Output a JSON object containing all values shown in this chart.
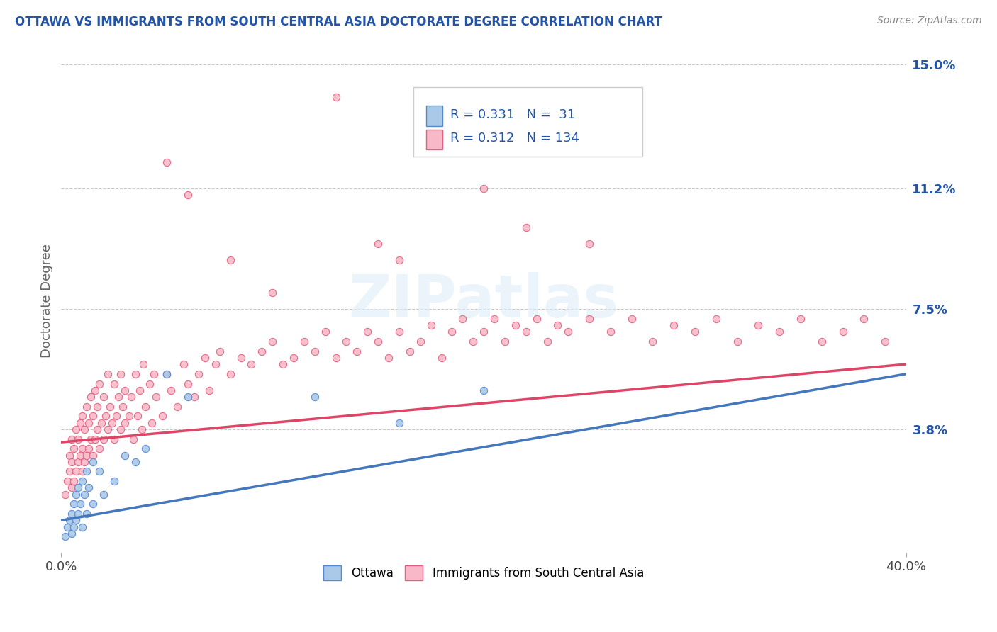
{
  "title": "OTTAWA VS IMMIGRANTS FROM SOUTH CENTRAL ASIA DOCTORATE DEGREE CORRELATION CHART",
  "source": "Source: ZipAtlas.com",
  "ylabel": "Doctorate Degree",
  "xlim": [
    0.0,
    0.4
  ],
  "ylim": [
    0.0,
    0.155
  ],
  "yticks": [
    0.038,
    0.075,
    0.112,
    0.15
  ],
  "ytick_labels": [
    "3.8%",
    "7.5%",
    "11.2%",
    "15.0%"
  ],
  "xtick_labels": [
    "0.0%",
    "40.0%"
  ],
  "ottawa_fill_color": "#aac8e8",
  "ottawa_edge_color": "#5588cc",
  "immigrant_fill_color": "#f8b8c8",
  "immigrant_edge_color": "#e06080",
  "ottawa_line_color": "#4477bb",
  "immigrant_line_color": "#dd4466",
  "R_ottawa": 0.331,
  "N_ottawa": 31,
  "R_immigrant": 0.312,
  "N_immigrant": 134,
  "watermark": "ZIPatlas",
  "background_color": "#ffffff",
  "grid_color": "#bbbbbb",
  "title_color": "#2255aa",
  "label_color": "#2255aa",
  "ottawa_trend": [
    0.01,
    0.055
  ],
  "immigrant_trend": [
    0.034,
    0.058
  ],
  "ottawa_scatter": [
    [
      0.002,
      0.005
    ],
    [
      0.003,
      0.008
    ],
    [
      0.004,
      0.01
    ],
    [
      0.005,
      0.006
    ],
    [
      0.005,
      0.012
    ],
    [
      0.006,
      0.008
    ],
    [
      0.006,
      0.015
    ],
    [
      0.007,
      0.01
    ],
    [
      0.007,
      0.018
    ],
    [
      0.008,
      0.012
    ],
    [
      0.008,
      0.02
    ],
    [
      0.009,
      0.015
    ],
    [
      0.01,
      0.008
    ],
    [
      0.01,
      0.022
    ],
    [
      0.011,
      0.018
    ],
    [
      0.012,
      0.012
    ],
    [
      0.012,
      0.025
    ],
    [
      0.013,
      0.02
    ],
    [
      0.015,
      0.015
    ],
    [
      0.015,
      0.028
    ],
    [
      0.018,
      0.025
    ],
    [
      0.02,
      0.018
    ],
    [
      0.025,
      0.022
    ],
    [
      0.03,
      0.03
    ],
    [
      0.035,
      0.028
    ],
    [
      0.04,
      0.032
    ],
    [
      0.05,
      0.055
    ],
    [
      0.06,
      0.048
    ],
    [
      0.16,
      0.04
    ],
    [
      0.12,
      0.048
    ],
    [
      0.2,
      0.05
    ]
  ],
  "immigrant_scatter": [
    [
      0.002,
      0.018
    ],
    [
      0.003,
      0.022
    ],
    [
      0.004,
      0.025
    ],
    [
      0.004,
      0.03
    ],
    [
      0.005,
      0.02
    ],
    [
      0.005,
      0.028
    ],
    [
      0.005,
      0.035
    ],
    [
      0.006,
      0.022
    ],
    [
      0.006,
      0.032
    ],
    [
      0.007,
      0.025
    ],
    [
      0.007,
      0.038
    ],
    [
      0.008,
      0.028
    ],
    [
      0.008,
      0.035
    ],
    [
      0.009,
      0.03
    ],
    [
      0.009,
      0.04
    ],
    [
      0.01,
      0.025
    ],
    [
      0.01,
      0.032
    ],
    [
      0.01,
      0.042
    ],
    [
      0.011,
      0.028
    ],
    [
      0.011,
      0.038
    ],
    [
      0.012,
      0.03
    ],
    [
      0.012,
      0.045
    ],
    [
      0.013,
      0.032
    ],
    [
      0.013,
      0.04
    ],
    [
      0.014,
      0.035
    ],
    [
      0.014,
      0.048
    ],
    [
      0.015,
      0.03
    ],
    [
      0.015,
      0.042
    ],
    [
      0.016,
      0.035
    ],
    [
      0.016,
      0.05
    ],
    [
      0.017,
      0.038
    ],
    [
      0.017,
      0.045
    ],
    [
      0.018,
      0.032
    ],
    [
      0.018,
      0.052
    ],
    [
      0.019,
      0.04
    ],
    [
      0.02,
      0.035
    ],
    [
      0.02,
      0.048
    ],
    [
      0.021,
      0.042
    ],
    [
      0.022,
      0.038
    ],
    [
      0.022,
      0.055
    ],
    [
      0.023,
      0.045
    ],
    [
      0.024,
      0.04
    ],
    [
      0.025,
      0.035
    ],
    [
      0.025,
      0.052
    ],
    [
      0.026,
      0.042
    ],
    [
      0.027,
      0.048
    ],
    [
      0.028,
      0.038
    ],
    [
      0.028,
      0.055
    ],
    [
      0.029,
      0.045
    ],
    [
      0.03,
      0.04
    ],
    [
      0.03,
      0.05
    ],
    [
      0.032,
      0.042
    ],
    [
      0.033,
      0.048
    ],
    [
      0.034,
      0.035
    ],
    [
      0.035,
      0.055
    ],
    [
      0.036,
      0.042
    ],
    [
      0.037,
      0.05
    ],
    [
      0.038,
      0.038
    ],
    [
      0.039,
      0.058
    ],
    [
      0.04,
      0.045
    ],
    [
      0.042,
      0.052
    ],
    [
      0.043,
      0.04
    ],
    [
      0.044,
      0.055
    ],
    [
      0.045,
      0.048
    ],
    [
      0.048,
      0.042
    ],
    [
      0.05,
      0.055
    ],
    [
      0.052,
      0.05
    ],
    [
      0.055,
      0.045
    ],
    [
      0.058,
      0.058
    ],
    [
      0.06,
      0.052
    ],
    [
      0.063,
      0.048
    ],
    [
      0.065,
      0.055
    ],
    [
      0.068,
      0.06
    ],
    [
      0.07,
      0.05
    ],
    [
      0.073,
      0.058
    ],
    [
      0.075,
      0.062
    ],
    [
      0.08,
      0.055
    ],
    [
      0.085,
      0.06
    ],
    [
      0.09,
      0.058
    ],
    [
      0.095,
      0.062
    ],
    [
      0.1,
      0.065
    ],
    [
      0.105,
      0.058
    ],
    [
      0.11,
      0.06
    ],
    [
      0.115,
      0.065
    ],
    [
      0.12,
      0.062
    ],
    [
      0.125,
      0.068
    ],
    [
      0.13,
      0.06
    ],
    [
      0.135,
      0.065
    ],
    [
      0.14,
      0.062
    ],
    [
      0.145,
      0.068
    ],
    [
      0.15,
      0.065
    ],
    [
      0.155,
      0.06
    ],
    [
      0.16,
      0.068
    ],
    [
      0.165,
      0.062
    ],
    [
      0.17,
      0.065
    ],
    [
      0.175,
      0.07
    ],
    [
      0.18,
      0.06
    ],
    [
      0.185,
      0.068
    ],
    [
      0.19,
      0.072
    ],
    [
      0.195,
      0.065
    ],
    [
      0.2,
      0.068
    ],
    [
      0.205,
      0.072
    ],
    [
      0.21,
      0.065
    ],
    [
      0.215,
      0.07
    ],
    [
      0.22,
      0.068
    ],
    [
      0.225,
      0.072
    ],
    [
      0.23,
      0.065
    ],
    [
      0.235,
      0.07
    ],
    [
      0.24,
      0.068
    ],
    [
      0.25,
      0.072
    ],
    [
      0.26,
      0.068
    ],
    [
      0.27,
      0.072
    ],
    [
      0.28,
      0.065
    ],
    [
      0.29,
      0.07
    ],
    [
      0.3,
      0.068
    ],
    [
      0.31,
      0.072
    ],
    [
      0.32,
      0.065
    ],
    [
      0.33,
      0.07
    ],
    [
      0.34,
      0.068
    ],
    [
      0.35,
      0.072
    ],
    [
      0.36,
      0.065
    ],
    [
      0.37,
      0.068
    ],
    [
      0.38,
      0.072
    ],
    [
      0.39,
      0.065
    ],
    [
      0.16,
      0.09
    ],
    [
      0.2,
      0.112
    ],
    [
      0.17,
      0.13
    ],
    [
      0.13,
      0.14
    ],
    [
      0.22,
      0.1
    ],
    [
      0.25,
      0.095
    ],
    [
      0.1,
      0.08
    ],
    [
      0.08,
      0.09
    ],
    [
      0.15,
      0.095
    ],
    [
      0.05,
      0.12
    ],
    [
      0.06,
      0.11
    ]
  ]
}
